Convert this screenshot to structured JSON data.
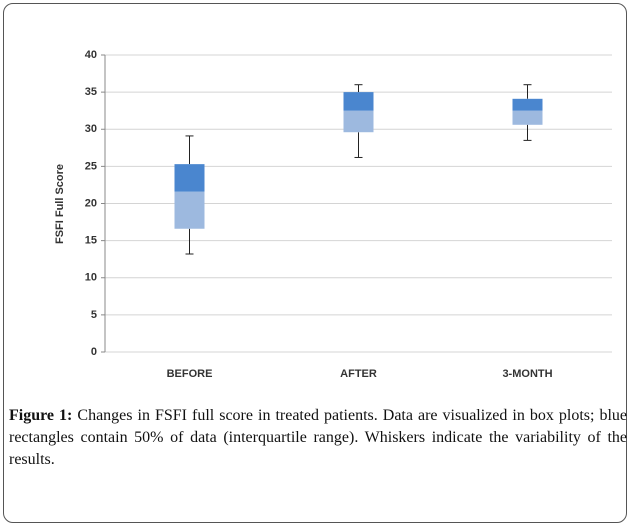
{
  "chart_data": {
    "type": "box",
    "y_label": "FSFI Full Score",
    "categories": [
      "BEFORE",
      "AFTER",
      "3-MONTH"
    ],
    "boxes": [
      {
        "min": 13.2,
        "q1": 16.6,
        "median": 21.6,
        "q3": 25.3,
        "max": 29.1
      },
      {
        "min": 26.2,
        "q1": 29.6,
        "median": 32.5,
        "q3": 35,
        "max": 36
      },
      {
        "min": 28.5,
        "q1": 30.6,
        "median": 32.5,
        "q3": 34.1,
        "max": 36
      }
    ],
    "upper_color": "#4a86cf",
    "lower_color": "#9db9df",
    "ylim": [
      0,
      40
    ],
    "yticks": [
      0,
      5,
      10,
      15,
      20,
      25,
      30,
      35,
      40
    ],
    "grid": true
  },
  "caption": {
    "label": "Figure 1:",
    "text": "Changes in FSFI full score in treated patients. Data are visualized in box plots; blue rectangles contain 50% of data (interquartile range). Whiskers indicate the variability of the results."
  }
}
